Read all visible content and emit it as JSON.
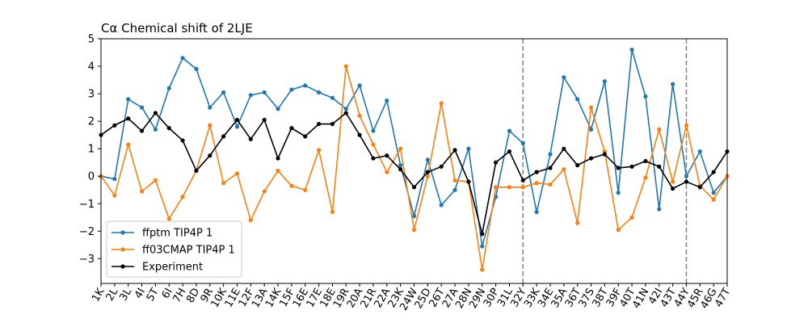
{
  "chart_data": {
    "type": "line",
    "title": "Cα Chemical shift of 2LJE",
    "xlabel": "",
    "ylabel": "",
    "ylim": [
      -3.9,
      5.0
    ],
    "yticks": [
      -3,
      -2,
      -1,
      0,
      1,
      2,
      3,
      4,
      5
    ],
    "categories": [
      "1K",
      "2L",
      "3L",
      "4I",
      "5T",
      "6I",
      "7H",
      "8D",
      "9R",
      "10K",
      "11E",
      "12F",
      "13A",
      "14K",
      "15F",
      "16E",
      "17E",
      "18E",
      "19R",
      "20A",
      "21R",
      "22A",
      "23K",
      "24W",
      "25D",
      "26T",
      "27A",
      "28N",
      "29N",
      "30P",
      "31L",
      "32Y",
      "33K",
      "34E",
      "35A",
      "36T",
      "37S",
      "38T",
      "39F",
      "40T",
      "41N",
      "42I",
      "43T",
      "44Y",
      "45R",
      "46G",
      "47T"
    ],
    "vlines": [
      "32Y",
      "44Y"
    ],
    "grid": false,
    "legend_position": "lower-left",
    "series": [
      {
        "name": "ffptm TIP4P 1",
        "color": "#1f77b4",
        "values": [
          0.0,
          -0.1,
          2.8,
          2.5,
          1.7,
          3.2,
          4.3,
          3.9,
          2.5,
          3.05,
          1.8,
          2.95,
          3.05,
          2.45,
          3.15,
          3.3,
          3.05,
          2.85,
          2.45,
          3.3,
          1.65,
          2.75,
          0.4,
          -1.45,
          0.6,
          -1.05,
          -0.5,
          1.0,
          -2.55,
          -0.75,
          1.65,
          1.2,
          -1.3,
          0.8,
          3.6,
          2.8,
          1.7,
          3.45,
          -0.6,
          4.6,
          2.9,
          -1.2,
          3.35,
          0.0,
          0.9,
          -0.6,
          0.0
        ]
      },
      {
        "name": "ff03CMAP TIP4P 1",
        "color": "#ff7f0e",
        "values": [
          0.0,
          -0.7,
          1.15,
          -0.55,
          -0.15,
          -1.55,
          -0.75,
          0.2,
          1.85,
          -0.25,
          0.1,
          -1.6,
          -0.55,
          0.2,
          -0.35,
          -0.5,
          0.95,
          -1.3,
          4.0,
          2.2,
          1.15,
          0.15,
          1.0,
          -1.95,
          0.0,
          2.65,
          -0.15,
          -0.2,
          -3.4,
          -0.4,
          -0.4,
          -0.4,
          -0.25,
          -0.3,
          0.25,
          -1.7,
          2.5,
          0.9,
          -1.95,
          -1.5,
          -0.05,
          1.7,
          -0.2,
          1.85,
          -0.35,
          -0.85,
          0.0
        ]
      },
      {
        "name": "Experiment",
        "color": "#000000",
        "values": [
          1.5,
          1.85,
          2.1,
          1.65,
          2.3,
          1.75,
          1.3,
          0.2,
          0.75,
          1.45,
          2.05,
          1.35,
          2.05,
          0.65,
          1.75,
          1.45,
          1.9,
          1.9,
          2.3,
          1.5,
          0.65,
          0.75,
          0.25,
          -0.4,
          0.15,
          0.35,
          0.95,
          -0.2,
          -2.1,
          0.5,
          0.9,
          -0.15,
          0.15,
          0.3,
          1.0,
          0.4,
          0.65,
          0.8,
          0.3,
          0.35,
          0.55,
          0.35,
          -0.45,
          -0.2,
          -0.4,
          0.15,
          0.9
        ]
      }
    ]
  }
}
